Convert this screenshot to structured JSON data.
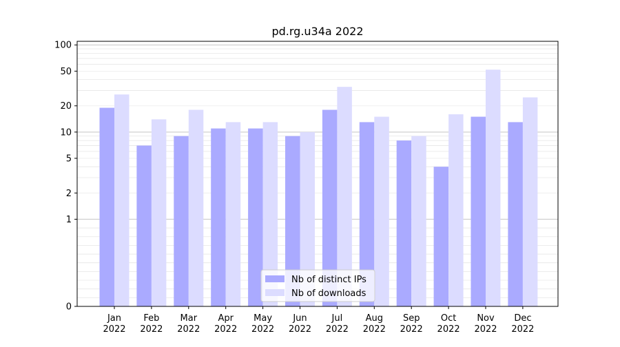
{
  "chart_data": {
    "type": "bar",
    "title": "pd.rg.u34a 2022",
    "xlabel": "",
    "ylabel": "",
    "y_scale": "symlog",
    "ylim": [
      0,
      110
    ],
    "y_ticks": [
      0,
      1,
      2,
      5,
      10,
      20,
      50,
      100
    ],
    "y_tick_labels": [
      "0",
      "1",
      "2",
      "5",
      "10",
      "20",
      "50",
      "100"
    ],
    "categories": [
      "Jan",
      "Feb",
      "Mar",
      "Apr",
      "May",
      "Jun",
      "Jul",
      "Aug",
      "Sep",
      "Oct",
      "Nov",
      "Dec"
    ],
    "category_sublabels": [
      "2022",
      "2022",
      "2022",
      "2022",
      "2022",
      "2022",
      "2022",
      "2022",
      "2022",
      "2022",
      "2022",
      "2022"
    ],
    "series": [
      {
        "name": "Nb of distinct IPs",
        "color": "#aaaaff",
        "values": [
          19,
          7,
          9,
          11,
          11,
          9,
          18,
          13,
          8,
          4,
          15,
          13
        ]
      },
      {
        "name": "Nb of downloads",
        "color": "#dcdcff",
        "values": [
          27,
          14,
          18,
          13,
          13,
          10,
          33,
          15,
          9,
          16,
          52,
          25
        ]
      }
    ],
    "grid": true,
    "legend_position": "bottom-center"
  }
}
